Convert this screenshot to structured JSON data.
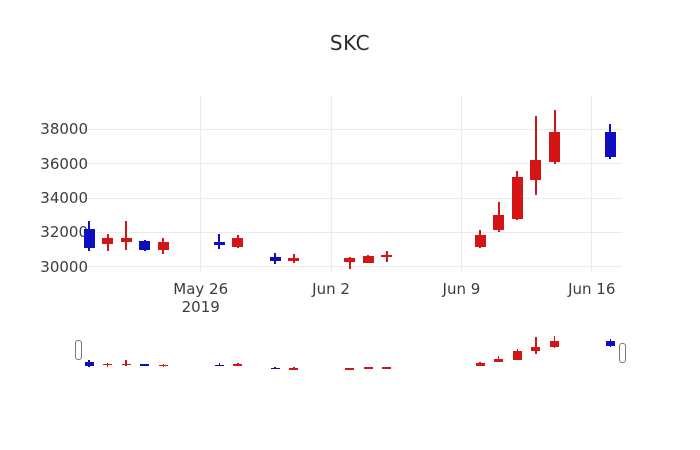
{
  "chart_data": {
    "type": "candlestick",
    "title": "SKC",
    "up_color": "#d41515",
    "down_color": "#0e0ebe",
    "grid": true,
    "grid_color": "#ebebeb",
    "axis_text_color": "#3c3c3c",
    "ylim": [
      29700,
      40000
    ],
    "yticks": [
      30000,
      32000,
      34000,
      36000,
      38000
    ],
    "xticks": [
      {
        "date": "2019-05-26",
        "label": "May 26",
        "sublabel": "2019"
      },
      {
        "date": "2019-06-02",
        "label": "Jun 2",
        "sublabel": ""
      },
      {
        "date": "2019-06-09",
        "label": "Jun 9",
        "sublabel": ""
      },
      {
        "date": "2019-06-16",
        "label": "Jun 16",
        "sublabel": ""
      }
    ],
    "candles": [
      {
        "date": "2019-05-20",
        "open": 32200,
        "high": 32650,
        "low": 30900,
        "close": 31100
      },
      {
        "date": "2019-05-21",
        "open": 31350,
        "high": 31900,
        "low": 30900,
        "close": 31650
      },
      {
        "date": "2019-05-22",
        "open": 31450,
        "high": 32650,
        "low": 31000,
        "close": 31700
      },
      {
        "date": "2019-05-23",
        "open": 31500,
        "high": 31550,
        "low": 30950,
        "close": 31000
      },
      {
        "date": "2019-05-24",
        "open": 31000,
        "high": 31700,
        "low": 30750,
        "close": 31450
      },
      {
        "date": "2019-05-27",
        "open": 31450,
        "high": 31900,
        "low": 31050,
        "close": 31250
      },
      {
        "date": "2019-05-28",
        "open": 31150,
        "high": 31850,
        "low": 31100,
        "close": 31700
      },
      {
        "date": "2019-05-30",
        "open": 30600,
        "high": 30800,
        "low": 30150,
        "close": 30350
      },
      {
        "date": "2019-05-31",
        "open": 30350,
        "high": 30750,
        "low": 30250,
        "close": 30500
      },
      {
        "date": "2019-06-03",
        "open": 30300,
        "high": 30550,
        "low": 29900,
        "close": 30500
      },
      {
        "date": "2019-06-04",
        "open": 30250,
        "high": 30700,
        "low": 30200,
        "close": 30650
      },
      {
        "date": "2019-06-05",
        "open": 30550,
        "high": 30900,
        "low": 30300,
        "close": 30700
      },
      {
        "date": "2019-06-10",
        "open": 31150,
        "high": 32150,
        "low": 31100,
        "close": 31850
      },
      {
        "date": "2019-06-11",
        "open": 32150,
        "high": 33750,
        "low": 32050,
        "close": 33000
      },
      {
        "date": "2019-06-12",
        "open": 32800,
        "high": 35550,
        "low": 32750,
        "close": 35250
      },
      {
        "date": "2019-06-13",
        "open": 35050,
        "high": 38800,
        "low": 34200,
        "close": 36200
      },
      {
        "date": "2019-06-14",
        "open": 36100,
        "high": 39100,
        "low": 36000,
        "close": 37850
      },
      {
        "date": "2019-06-17",
        "open": 37850,
        "high": 38300,
        "low": 36300,
        "close": 36400
      }
    ],
    "rangeslider": true
  }
}
